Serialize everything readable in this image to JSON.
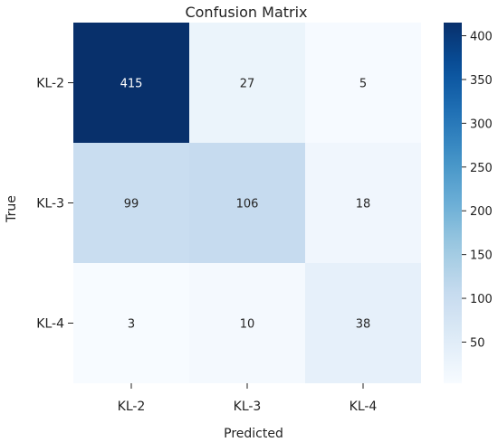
{
  "chart_data": {
    "type": "heatmap",
    "title": "Confusion Matrix",
    "xlabel": "Predicted",
    "ylabel": "True",
    "x_categories": [
      "KL-2",
      "KL-3",
      "KL-4"
    ],
    "y_categories": [
      "KL-2",
      "KL-3",
      "KL-4"
    ],
    "values": [
      [
        415,
        27,
        5
      ],
      [
        99,
        106,
        18
      ],
      [
        3,
        10,
        38
      ]
    ],
    "colormap": "Blues",
    "colorbar": {
      "min": 3,
      "max": 415,
      "ticks": [
        50,
        100,
        150,
        200,
        250,
        300,
        350,
        400
      ]
    },
    "colors": {
      "low": "#f7fbff",
      "high": "#08306b"
    }
  }
}
